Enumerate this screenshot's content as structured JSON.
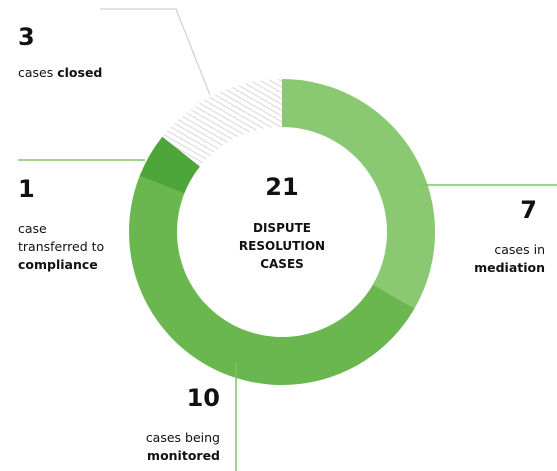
{
  "chart_data": {
    "type": "donut",
    "total": 21,
    "center_label": [
      "DISPUTE",
      "RESOLUTION",
      "CASES"
    ],
    "series": [
      {
        "name": "mediation",
        "prefix": [
          "cases in"
        ],
        "values": [
          7
        ],
        "color": "#8ac971"
      },
      {
        "name": "monitored",
        "prefix": [
          "cases being"
        ],
        "values": [
          10
        ],
        "color": "#6ab64f"
      },
      {
        "name": "compliance",
        "prefix": [
          "case",
          "transferred to"
        ],
        "values": [
          1
        ],
        "color": "#4ea63a"
      },
      {
        "name": "closed",
        "prefix": [
          "cases"
        ],
        "values": [
          3
        ],
        "color": "#cfcfcf",
        "hatched": true
      }
    ]
  }
}
